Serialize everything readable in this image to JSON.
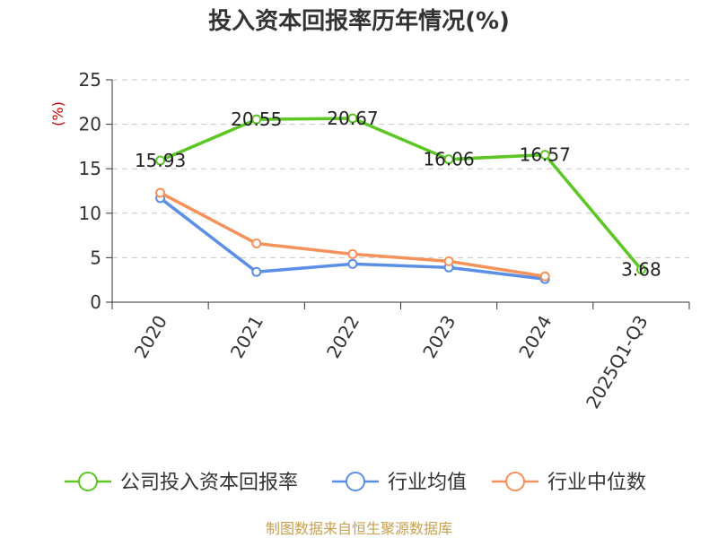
{
  "chart_data": {
    "type": "line",
    "title": "投入资本回报率历年情况(%)",
    "ylabel": "(%)",
    "ylim": [
      0,
      25
    ],
    "yticks": [
      0,
      5,
      10,
      15,
      20,
      25
    ],
    "grid": true,
    "categories": [
      "2020",
      "2021",
      "2022",
      "2023",
      "2024",
      "2025Q1-Q3"
    ],
    "series": [
      {
        "name": "公司投入资本回报率",
        "color": "#5cc624",
        "values": [
          15.93,
          20.55,
          20.67,
          16.06,
          16.57,
          3.68
        ],
        "labels": true
      },
      {
        "name": "行业均值",
        "color": "#5b8ee6",
        "values": [
          11.7,
          3.4,
          4.3,
          3.9,
          2.6,
          null
        ],
        "labels": false
      },
      {
        "name": "行业中位数",
        "color": "#f5915a",
        "values": [
          12.3,
          6.6,
          5.4,
          4.6,
          2.9,
          null
        ],
        "labels": false
      }
    ],
    "legend_position": "bottom",
    "source": "制图数据来自恒生聚源数据库"
  }
}
